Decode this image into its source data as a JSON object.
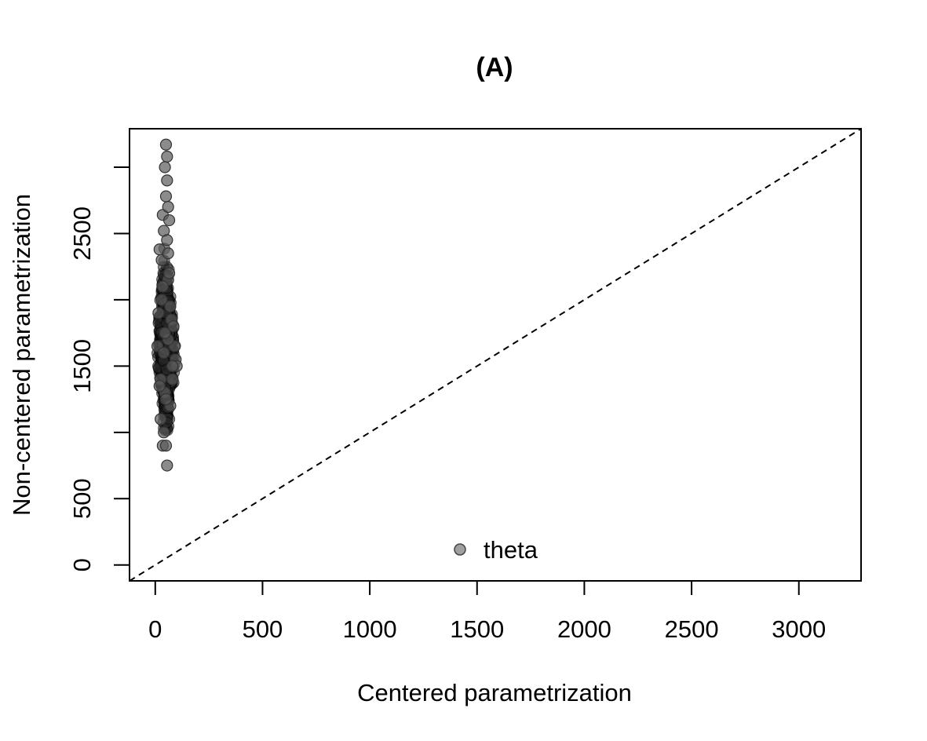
{
  "chart_data": {
    "type": "scatter",
    "title": "(A)",
    "xlabel": "Centered parametrization",
    "ylabel": "Non-centered parametrization",
    "xlim": [
      -120,
      3290
    ],
    "ylim": [
      -120,
      3290
    ],
    "xticks": [
      0,
      500,
      1000,
      1500,
      2000,
      2500,
      3000
    ],
    "xtick_labels": [
      "0",
      "500",
      "1000",
      "1500",
      "2000",
      "2500",
      "3000"
    ],
    "yticks": [
      0,
      500,
      1000,
      1500,
      2000,
      2500,
      3000
    ],
    "ytick_labels": [
      "0",
      "500",
      "",
      "1500",
      "",
      "2500",
      ""
    ],
    "reference_line": {
      "type": "identity",
      "style": "dashed"
    },
    "grid": false,
    "legend": {
      "position": "bottom-center",
      "entries": [
        {
          "label": "theta",
          "marker": "circle",
          "color": "#808080"
        }
      ]
    },
    "marker_color": "#555555",
    "series": [
      {
        "name": "theta",
        "x": [
          50,
          55,
          45,
          55,
          50,
          35,
          40,
          60,
          65,
          20,
          30,
          60,
          75,
          85,
          90,
          80,
          95,
          15,
          25,
          70,
          100,
          40,
          10,
          35,
          50,
          45,
          60,
          30,
          55,
          65,
          40,
          25,
          70,
          50,
          45,
          35,
          60,
          20,
          80,
          55
        ],
        "y": [
          3170,
          3080,
          3000,
          2900,
          2780,
          2640,
          2520,
          2700,
          2600,
          2380,
          2300,
          2150,
          1850,
          1800,
          1650,
          1400,
          1550,
          1900,
          1100,
          1200,
          1500,
          1000,
          1650,
          900,
          900,
          1300,
          1700,
          2000,
          2450,
          2200,
          1600,
          1400,
          1950,
          1250,
          1750,
          2100,
          2350,
          1350,
          1500,
          750
        ]
      }
    ]
  }
}
